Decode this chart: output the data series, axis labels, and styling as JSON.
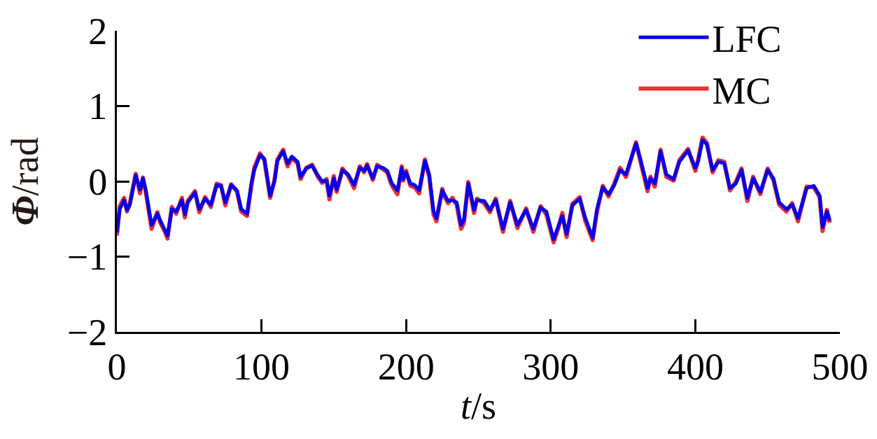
{
  "chart_data": {
    "type": "line",
    "xlabel": "t/s",
    "ylabel": "Φ/rad",
    "x": [
      0,
      2,
      5,
      7,
      9,
      13,
      16,
      18,
      20,
      24,
      28,
      30,
      33,
      35,
      38,
      41,
      45,
      47,
      49,
      54,
      57,
      61,
      65,
      69,
      72,
      75,
      79,
      83,
      86,
      90,
      93,
      95,
      99,
      102,
      106,
      109,
      111,
      115,
      118,
      121,
      125,
      127,
      131,
      135,
      139,
      142,
      145,
      147,
      150,
      152,
      156,
      160,
      164,
      168,
      171,
      173,
      177,
      180,
      184,
      187,
      190,
      194,
      197,
      198,
      200,
      203,
      206,
      209,
      213,
      216,
      219,
      221,
      225,
      227,
      229,
      232,
      235,
      238,
      240,
      243,
      245,
      247,
      249,
      254,
      258,
      262,
      267,
      272,
      277,
      283,
      288,
      293,
      297,
      302,
      305,
      308,
      311,
      315,
      320,
      324,
      329,
      332,
      336,
      340,
      344,
      348,
      352,
      359,
      362,
      367,
      369,
      372,
      376,
      380,
      385,
      389,
      395,
      400,
      402,
      405,
      408,
      412,
      416,
      420,
      424,
      428,
      432,
      436,
      440,
      445,
      450,
      454,
      458,
      463,
      467,
      471,
      477,
      482,
      486,
      488,
      491,
      493
    ],
    "series": [
      {
        "name": "LFC",
        "color": "#0000f0",
        "values": [
          -0.68,
          -0.37,
          -0.25,
          -0.38,
          -0.31,
          0.08,
          -0.11,
          0.04,
          -0.12,
          -0.58,
          -0.43,
          -0.52,
          -0.64,
          -0.72,
          -0.37,
          -0.4,
          -0.25,
          -0.44,
          -0.28,
          -0.15,
          -0.37,
          -0.23,
          -0.31,
          -0.05,
          -0.06,
          -0.28,
          -0.05,
          -0.12,
          -0.37,
          -0.43,
          -0.03,
          0.15,
          0.35,
          0.3,
          -0.19,
          0.0,
          0.27,
          0.4,
          0.24,
          0.33,
          0.26,
          0.06,
          0.17,
          0.21,
          0.08,
          0.0,
          0.01,
          -0.19,
          0.04,
          -0.11,
          0.15,
          0.09,
          -0.05,
          0.18,
          0.14,
          0.21,
          0.04,
          0.2,
          0.18,
          0.14,
          -0.02,
          -0.12,
          0.18,
          0.03,
          0.12,
          -0.03,
          -0.05,
          -0.12,
          0.27,
          0.09,
          -0.4,
          -0.49,
          -0.12,
          -0.19,
          -0.26,
          -0.25,
          -0.28,
          -0.58,
          -0.51,
          -0.03,
          -0.19,
          -0.38,
          -0.25,
          -0.26,
          -0.38,
          -0.25,
          -0.63,
          -0.28,
          -0.58,
          -0.38,
          -0.63,
          -0.35,
          -0.4,
          -0.77,
          -0.61,
          -0.46,
          -0.7,
          -0.32,
          -0.23,
          -0.49,
          -0.75,
          -0.37,
          -0.08,
          -0.17,
          -0.05,
          0.15,
          0.09,
          0.5,
          0.3,
          -0.09,
          0.04,
          -0.03,
          0.4,
          0.09,
          0.03,
          0.26,
          0.41,
          0.18,
          0.27,
          0.55,
          0.49,
          0.15,
          0.26,
          0.24,
          -0.09,
          -0.03,
          0.15,
          -0.22,
          0.04,
          -0.14,
          0.15,
          0.04,
          -0.28,
          -0.37,
          -0.31,
          -0.49,
          -0.09,
          -0.06,
          -0.19,
          -0.61,
          -0.4,
          -0.52
        ]
      },
      {
        "name": "MC",
        "color": "#f03030",
        "values": [
          -0.72,
          -0.33,
          -0.22,
          -0.4,
          -0.29,
          0.1,
          -0.16,
          0.05,
          -0.14,
          -0.63,
          -0.41,
          -0.55,
          -0.66,
          -0.76,
          -0.34,
          -0.43,
          -0.22,
          -0.48,
          -0.26,
          -0.13,
          -0.41,
          -0.21,
          -0.34,
          -0.03,
          -0.05,
          -0.32,
          -0.04,
          -0.13,
          -0.4,
          -0.46,
          -0.06,
          0.18,
          0.37,
          0.28,
          -0.22,
          0.02,
          0.29,
          0.42,
          0.2,
          0.31,
          0.24,
          0.03,
          0.18,
          0.22,
          0.06,
          -0.02,
          0.03,
          -0.24,
          0.07,
          -0.14,
          0.17,
          0.07,
          -0.09,
          0.2,
          0.12,
          0.23,
          0.02,
          0.22,
          0.16,
          0.12,
          -0.05,
          -0.17,
          0.2,
          0.01,
          0.14,
          -0.06,
          -0.08,
          -0.16,
          0.29,
          0.06,
          -0.44,
          -0.53,
          -0.1,
          -0.22,
          -0.29,
          -0.22,
          -0.31,
          -0.63,
          -0.55,
          -0.01,
          -0.22,
          -0.42,
          -0.23,
          -0.29,
          -0.41,
          -0.23,
          -0.67,
          -0.26,
          -0.62,
          -0.36,
          -0.67,
          -0.33,
          -0.44,
          -0.81,
          -0.64,
          -0.42,
          -0.74,
          -0.3,
          -0.21,
          -0.53,
          -0.78,
          -0.4,
          -0.06,
          -0.2,
          -0.03,
          0.18,
          0.06,
          0.52,
          0.27,
          -0.13,
          0.06,
          -0.07,
          0.42,
          0.06,
          0.01,
          0.28,
          0.43,
          0.14,
          0.29,
          0.58,
          0.51,
          0.12,
          0.28,
          0.26,
          -0.12,
          -0.01,
          0.17,
          -0.26,
          0.06,
          -0.17,
          0.17,
          0.02,
          -0.31,
          -0.4,
          -0.29,
          -0.53,
          -0.07,
          -0.08,
          -0.21,
          -0.66,
          -0.38,
          -0.55
        ]
      }
    ],
    "xlim": [
      0,
      500
    ],
    "xticks": [
      0,
      100,
      200,
      300,
      400,
      500
    ],
    "ylim": [
      -2,
      2
    ],
    "yticks": [
      -2,
      -1,
      0,
      1,
      2
    ],
    "legend": "top right",
    "line_style": "solid"
  }
}
